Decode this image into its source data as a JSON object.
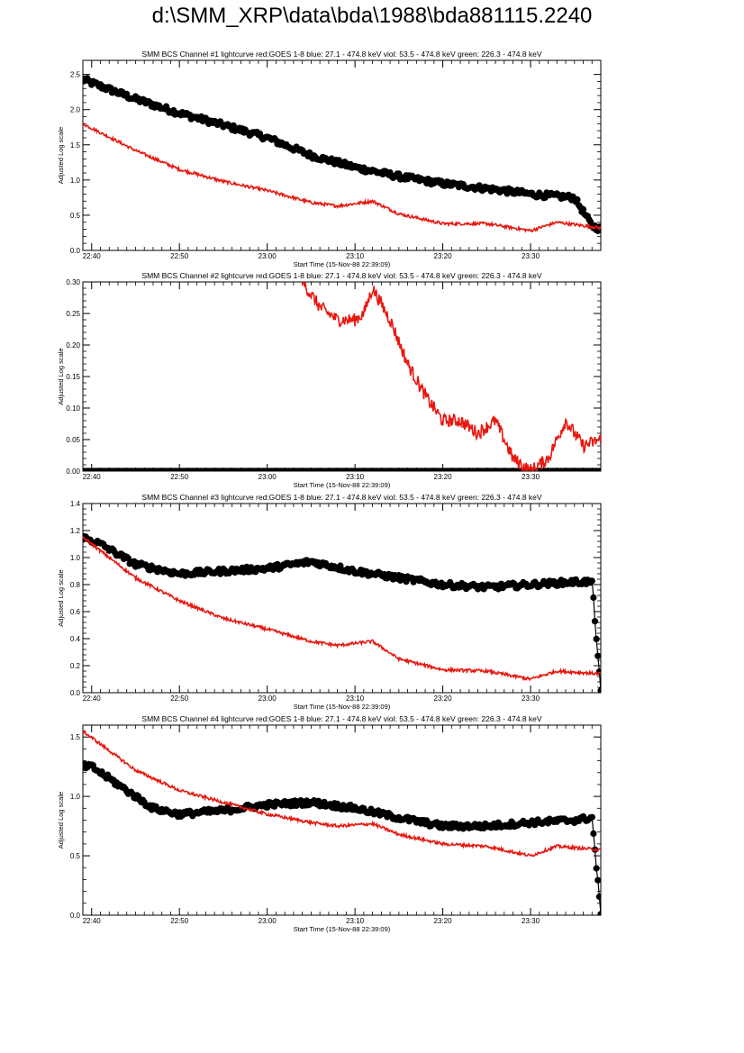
{
  "page_title": "d:\\SMM_XRP\\data\\bda\\1988\\bda881115.2240",
  "colors": {
    "red": "#e8170f",
    "black": "#000000",
    "background": "#ffffff"
  },
  "chart_data": [
    {
      "type": "line",
      "title": "SMM BCS Channel #1 lightcurve  red:GOES 1-8  blue: 27.1 - 474.8 keV  viol: 53.5 - 474.8 keV  green: 226.3 - 474.8 keV",
      "xlabel": "Start Time (15-Nov-88 22:39:09)",
      "ylabel": "Adjusted Log scale",
      "xlim": [
        "22:39",
        "23:38"
      ],
      "ylim": [
        0,
        2.7
      ],
      "x_ticks": [
        "22:40",
        "22:50",
        "23:00",
        "23:10",
        "23:20",
        "23:30"
      ],
      "y_ticks": [
        "0.0",
        "0.5",
        "1.0",
        "1.5",
        "2.0",
        "2.5"
      ],
      "grid": false,
      "series": [
        {
          "color": "#000000",
          "style": "line+markers",
          "x": [
            "22:39",
            "22:40",
            "22:45",
            "22:50",
            "22:55",
            "23:00",
            "23:05",
            "23:10",
            "23:15",
            "23:20",
            "23:25",
            "23:30",
            "23:35",
            "23:37",
            "23:38"
          ],
          "y": [
            2.43,
            2.38,
            2.15,
            1.95,
            1.78,
            1.6,
            1.35,
            1.18,
            1.05,
            0.95,
            0.88,
            0.8,
            0.75,
            0.35,
            0.3
          ]
        },
        {
          "color": "#e8170f",
          "style": "line",
          "x": [
            "22:39",
            "22:45",
            "22:50",
            "22:55",
            "23:00",
            "23:05",
            "23:08",
            "23:12",
            "23:15",
            "23:20",
            "23:25",
            "23:30",
            "23:33",
            "23:38"
          ],
          "y": [
            1.8,
            1.42,
            1.15,
            0.98,
            0.85,
            0.68,
            0.63,
            0.7,
            0.52,
            0.38,
            0.38,
            0.28,
            0.4,
            0.32
          ]
        }
      ]
    },
    {
      "type": "line",
      "title": "SMM BCS Channel #2 lightcurve  red:GOES 1-8  blue: 27.1 - 474.8 keV  viol: 53.5 - 474.8 keV  green: 226.3 - 474.8 keV",
      "xlabel": "Start Time (15-Nov-88 22:39:09)",
      "ylabel": "Adjusted Log scale",
      "xlim": [
        "22:39",
        "23:38"
      ],
      "ylim": [
        0,
        0.3
      ],
      "x_ticks": [
        "22:40",
        "22:50",
        "23:00",
        "23:10",
        "23:20",
        "23:30"
      ],
      "y_ticks": [
        "0.00",
        "0.05",
        "0.10",
        "0.15",
        "0.20",
        "0.25",
        "0.30"
      ],
      "grid": false,
      "series": [
        {
          "color": "#000000",
          "style": "line+markers",
          "x": [
            "22:39",
            "23:38"
          ],
          "y": [
            0.0,
            0.0
          ]
        },
        {
          "color": "#e8170f",
          "style": "line",
          "x": [
            "23:04",
            "23:06",
            "23:08",
            "23:10",
            "23:11",
            "23:12",
            "23:14",
            "23:16",
            "23:18",
            "23:20",
            "23:22",
            "23:24",
            "23:26",
            "23:28",
            "23:30",
            "23:32",
            "23:34",
            "23:36",
            "23:38"
          ],
          "y": [
            0.3,
            0.26,
            0.24,
            0.24,
            0.25,
            0.29,
            0.24,
            0.17,
            0.12,
            0.08,
            0.08,
            0.06,
            0.08,
            0.02,
            0.0,
            0.02,
            0.08,
            0.04,
            0.05
          ]
        }
      ]
    },
    {
      "type": "line",
      "title": "SMM BCS Channel #3 lightcurve  red:GOES 1-8  blue: 27.1 - 474.8 keV  viol: 53.5 - 474.8 keV  green: 226.3 - 474.8 keV",
      "xlabel": "Start Time (15-Nov-88 22:39:09)",
      "ylabel": "Adjusted Log scale",
      "xlim": [
        "22:39",
        "23:38"
      ],
      "ylim": [
        0,
        1.4
      ],
      "x_ticks": [
        "22:40",
        "22:50",
        "23:00",
        "23:10",
        "23:20",
        "23:30"
      ],
      "y_ticks": [
        "0.0",
        "0.2",
        "0.4",
        "0.6",
        "0.8",
        "1.0",
        "1.2",
        "1.4"
      ],
      "grid": false,
      "series": [
        {
          "color": "#000000",
          "style": "line+markers",
          "x": [
            "22:39",
            "22:41",
            "22:45",
            "22:50",
            "22:55",
            "23:00",
            "23:05",
            "23:10",
            "23:15",
            "23:20",
            "23:25",
            "23:30",
            "23:35",
            "23:37",
            "23:38"
          ],
          "y": [
            1.15,
            1.1,
            0.95,
            0.88,
            0.9,
            0.92,
            0.97,
            0.9,
            0.85,
            0.8,
            0.78,
            0.8,
            0.82,
            0.82,
            0.0
          ]
        },
        {
          "color": "#e8170f",
          "style": "line",
          "x": [
            "22:39",
            "22:45",
            "22:50",
            "22:55",
            "23:00",
            "23:05",
            "23:08",
            "23:12",
            "23:15",
            "23:20",
            "23:25",
            "23:30",
            "23:33",
            "23:38"
          ],
          "y": [
            1.15,
            0.85,
            0.68,
            0.55,
            0.47,
            0.38,
            0.35,
            0.38,
            0.25,
            0.17,
            0.16,
            0.1,
            0.16,
            0.14
          ]
        }
      ]
    },
    {
      "type": "line",
      "title": "SMM BCS Channel #4 lightcurve  red:GOES 1-8  blue: 27.1 - 474.8 keV  viol: 53.5 - 474.8 keV  green: 226.3 - 474.8 keV",
      "xlabel": "Start Time (15-Nov-88 22:39:09)",
      "ylabel": "Adjusted Log scale",
      "xlim": [
        "22:39",
        "23:38"
      ],
      "ylim": [
        0,
        1.6
      ],
      "x_ticks": [
        "22:40",
        "22:50",
        "23:00",
        "23:10",
        "23:20",
        "23:30"
      ],
      "y_ticks": [
        "0.0",
        "0.5",
        "1.0",
        "1.5"
      ],
      "grid": false,
      "series": [
        {
          "color": "#000000",
          "style": "line+markers",
          "x": [
            "22:39",
            "22:40",
            "22:43",
            "22:47",
            "22:50",
            "22:55",
            "23:00",
            "23:05",
            "23:10",
            "23:15",
            "23:20",
            "23:25",
            "23:30",
            "23:35",
            "23:37",
            "23:38"
          ],
          "y": [
            1.25,
            1.25,
            1.1,
            0.9,
            0.85,
            0.88,
            0.93,
            0.95,
            0.9,
            0.82,
            0.75,
            0.75,
            0.78,
            0.8,
            0.82,
            0.0
          ]
        },
        {
          "color": "#e8170f",
          "style": "line",
          "x": [
            "22:39",
            "22:45",
            "22:50",
            "22:55",
            "23:00",
            "23:05",
            "23:08",
            "23:12",
            "23:15",
            "23:20",
            "23:25",
            "23:30",
            "23:33",
            "23:38"
          ],
          "y": [
            1.55,
            1.22,
            1.05,
            0.95,
            0.85,
            0.78,
            0.75,
            0.77,
            0.68,
            0.6,
            0.58,
            0.5,
            0.58,
            0.55
          ]
        }
      ]
    }
  ]
}
